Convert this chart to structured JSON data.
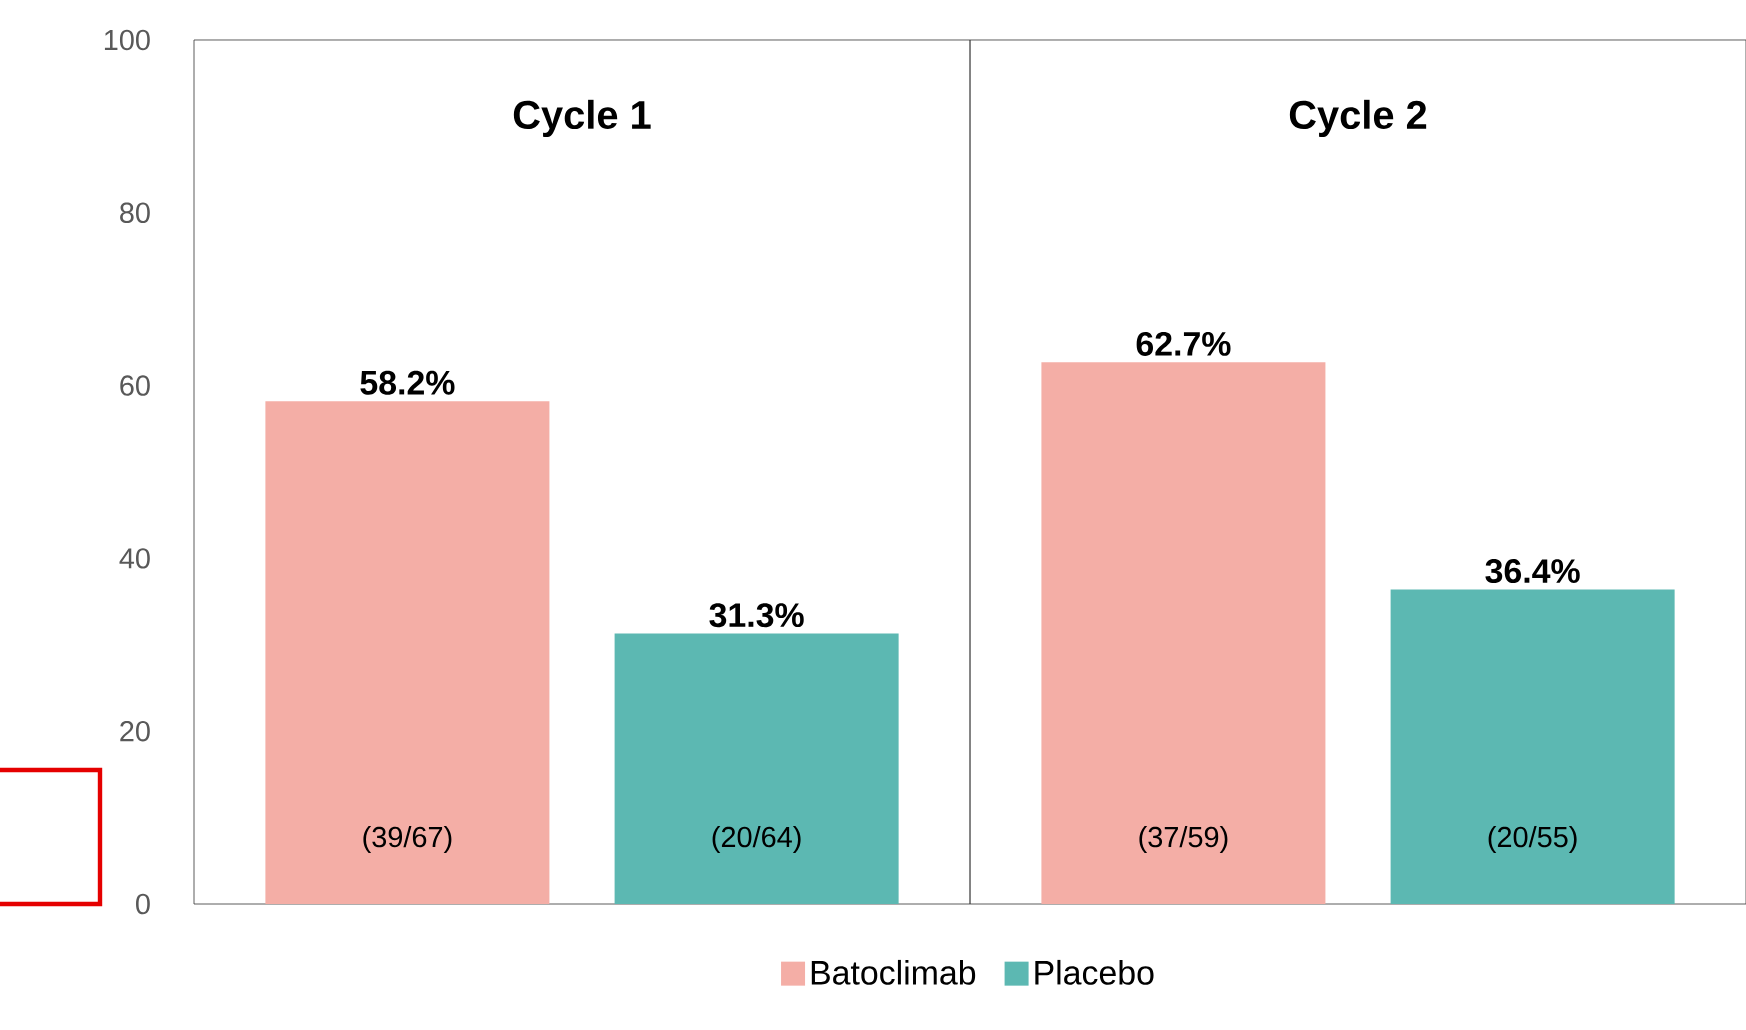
{
  "chart_data": {
    "type": "bar",
    "categories": [
      "Cycle 1",
      "Cycle 2"
    ],
    "series": [
      {
        "name": "Batoclimab",
        "color": "#f4aea6",
        "values": [
          58.2,
          62.7
        ],
        "value_labels": [
          "58.2%",
          "62.7%"
        ]
      },
      {
        "name": "Placebo",
        "color": "#5cb8b2",
        "values": [
          31.3,
          36.4
        ],
        "value_labels": [
          "31.3%",
          "36.4%"
        ]
      }
    ],
    "annotations": [
      "(39/67)",
      "(20/64)",
      "(37/59)",
      "(20/55)"
    ],
    "ylim": [
      0,
      100
    ],
    "yticks": [
      0,
      20,
      40,
      60,
      80,
      100
    ],
    "grid": false,
    "legend": "bottom"
  }
}
